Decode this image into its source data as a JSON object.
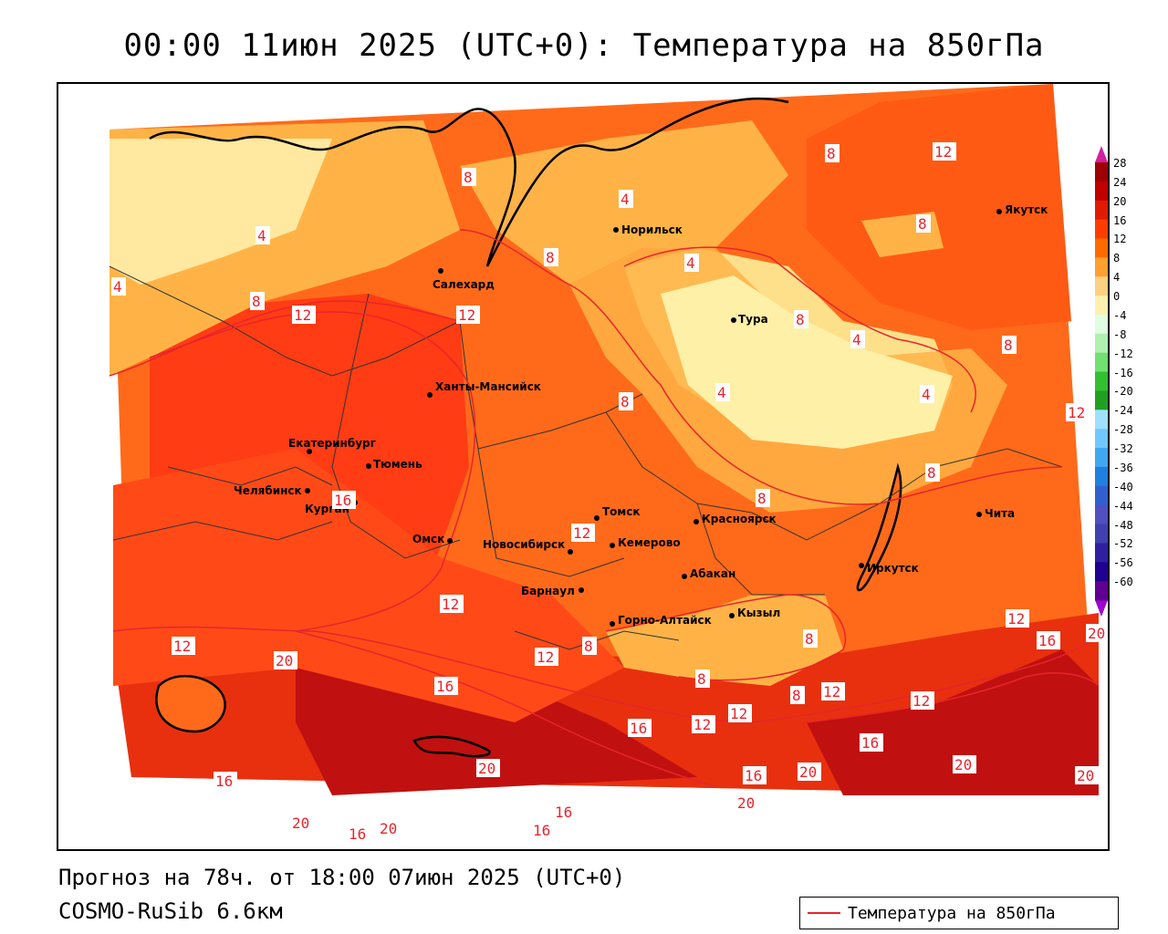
{
  "title": "00:00 11июн 2025 (UTC+0): Температура на 850гПа",
  "footer": {
    "forecast": "Прогноз на 78ч. от 18:00 07июн 2025 (UTC+0)",
    "model": "COSMO-RuSib 6.6км"
  },
  "legend": {
    "label": "Температура на 850гПа",
    "line_color": "#e8242b"
  },
  "colorbar": {
    "labels": [
      "28",
      "24",
      "20",
      "16",
      "12",
      "8",
      "4",
      "0",
      "-4",
      "-8",
      "-12",
      "-16",
      "-20",
      "-24",
      "-28",
      "-32",
      "-36",
      "-40",
      "-44",
      "-48",
      "-52",
      "-56",
      "-60"
    ],
    "colors": [
      "#9e0000",
      "#c00000",
      "#e01a00",
      "#ff3c00",
      "#ff6a00",
      "#ffa030",
      "#ffd080",
      "#fff0b0",
      "#e0ffe0",
      "#b0f0b0",
      "#70e070",
      "#30c030",
      "#20a020",
      "#a0e0ff",
      "#70c8ff",
      "#40a8f0",
      "#2080e0",
      "#3060d0",
      "#5050c0",
      "#4040b0",
      "#3020a0",
      "#200090",
      "#600090"
    ]
  },
  "cities": [
    {
      "name": "Салехард"
    },
    {
      "name": "Норильск"
    },
    {
      "name": "Якутск"
    },
    {
      "name": "Тура"
    },
    {
      "name": "Ханты-Мансийск"
    },
    {
      "name": "Екатеринбург"
    },
    {
      "name": "Тюмень"
    },
    {
      "name": "Челябинск"
    },
    {
      "name": "Курган"
    },
    {
      "name": "Омск"
    },
    {
      "name": "Томск"
    },
    {
      "name": "Новосибирск"
    },
    {
      "name": "Кемерово"
    },
    {
      "name": "Красноярск"
    },
    {
      "name": "Абакан"
    },
    {
      "name": "Барнаул"
    },
    {
      "name": "Горно-Алтайск"
    },
    {
      "name": "Кызыл"
    },
    {
      "name": "Иркутск"
    },
    {
      "name": "Чита"
    }
  ],
  "isotherm_labels": [
    "4",
    "8",
    "12",
    "16",
    "20"
  ]
}
